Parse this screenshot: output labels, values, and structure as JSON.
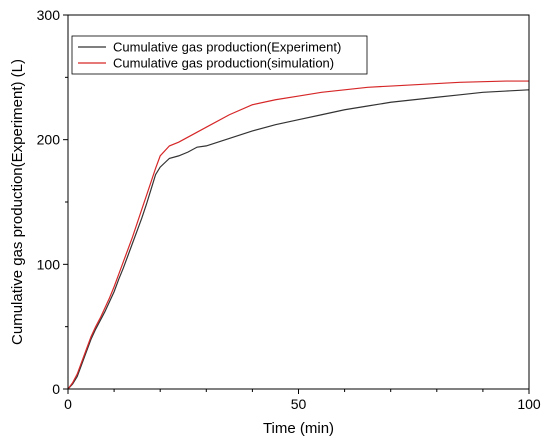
{
  "chart_data": {
    "type": "line",
    "title": "",
    "xlabel": "Time (min)",
    "ylabel": "Cumulative gas production(Experiment) (L)",
    "xlim": [
      0,
      100
    ],
    "ylim": [
      0,
      300
    ],
    "xticks": [
      0,
      50,
      100
    ],
    "yticks": [
      0,
      100,
      200,
      300
    ],
    "grid": false,
    "legend_position": "top-left",
    "series": [
      {
        "name": "Cumulative gas production(Experiment)",
        "color": "#333333",
        "x": [
          0,
          1,
          2,
          3,
          4,
          5,
          6,
          7,
          8,
          9,
          10,
          11,
          12,
          13,
          14,
          15,
          16,
          17,
          18,
          19,
          20,
          22,
          24,
          26,
          28,
          30,
          35,
          40,
          45,
          50,
          55,
          60,
          65,
          70,
          75,
          80,
          85,
          90,
          95,
          100
        ],
        "y": [
          0,
          4,
          10,
          20,
          30,
          40,
          48,
          55,
          62,
          70,
          78,
          88,
          97,
          107,
          117,
          127,
          137,
          148,
          160,
          172,
          178,
          185,
          187,
          190,
          194,
          195,
          201,
          207,
          212,
          216,
          220,
          224,
          227,
          230,
          232,
          234,
          236,
          238,
          239,
          240
        ]
      },
      {
        "name": "Cumulative gas production(simulation)",
        "color": "#d62728",
        "x": [
          0,
          1,
          2,
          3,
          4,
          5,
          6,
          7,
          8,
          9,
          10,
          11,
          12,
          13,
          14,
          15,
          16,
          17,
          18,
          19,
          20,
          22,
          24,
          26,
          28,
          30,
          35,
          40,
          45,
          50,
          55,
          60,
          65,
          70,
          75,
          80,
          85,
          90,
          95,
          100
        ],
        "y": [
          0,
          5,
          12,
          22,
          32,
          42,
          50,
          57,
          65,
          73,
          82,
          92,
          102,
          112,
          122,
          133,
          144,
          155,
          166,
          177,
          187,
          195,
          198,
          202,
          206,
          210,
          220,
          228,
          232,
          235,
          238,
          240,
          242,
          243,
          244,
          245,
          246,
          246.5,
          247,
          247
        ]
      }
    ]
  }
}
